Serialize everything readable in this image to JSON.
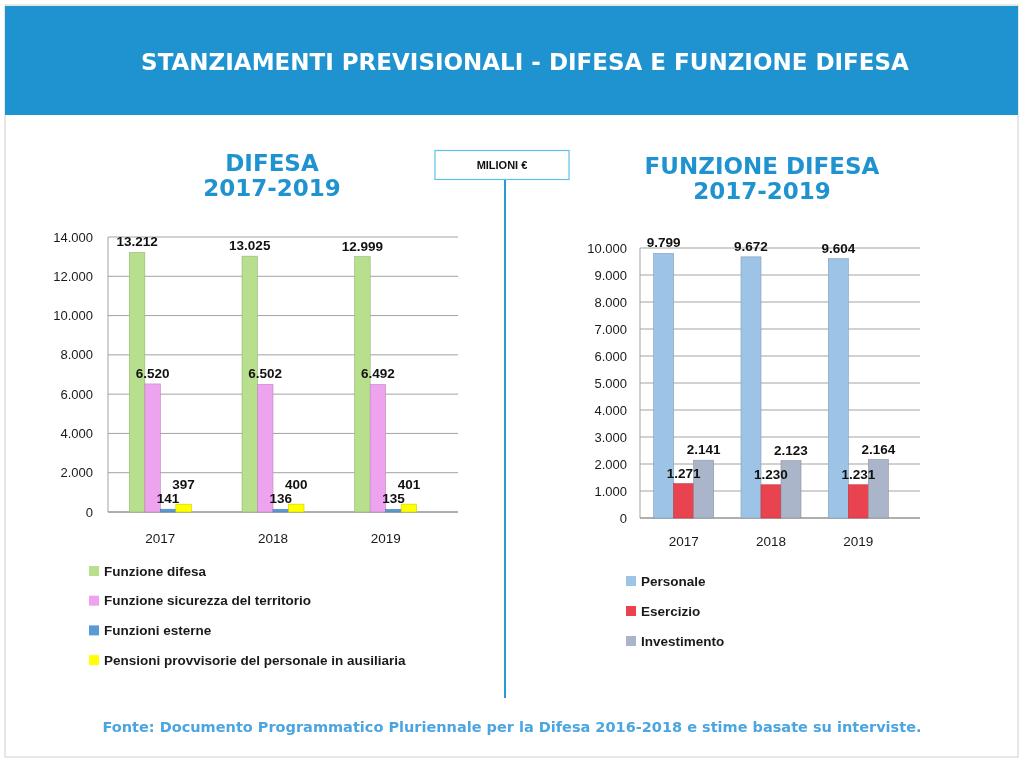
{
  "chart_data": [
    {
      "type": "other",
      "title": "STANZIAMENTI PREVISIONALI - DIFESA E FUNZIONE DIFESA",
      "annotations": [
        "MILIONI €",
        "Fonte: Documento Programmatico Pluriennale per la Difesa 2016-2018 e stime basate su interviste."
      ]
    },
    {
      "type": "bar",
      "title": "DIFESA",
      "subtitle": "2017-2019",
      "categories": [
        "2017",
        "2018",
        "2019"
      ],
      "series": [
        {
          "name": "Funzione difesa",
          "color": "#b7df8e",
          "values": [
            13212,
            13025,
            12999
          ],
          "value_labels": [
            "13.212",
            "13.025",
            "12.999"
          ]
        },
        {
          "name": "Funzione sicurezza del territorio",
          "color": "#eea3ee",
          "values": [
            6520,
            6502,
            6492
          ],
          "value_labels": [
            "6.520",
            "6.502",
            "6.492"
          ]
        },
        {
          "name": "Funzioni esterne",
          "color": "#5b9bd5",
          "values": [
            141,
            136,
            135
          ],
          "value_labels": [
            "141",
            "136",
            "135"
          ]
        },
        {
          "name": "Pensioni provvisorie del personale in ausiliaria",
          "color": "#ffff00",
          "values": [
            397,
            400,
            401
          ],
          "value_labels": [
            "397",
            "400",
            "401"
          ]
        }
      ],
      "ylim": [
        0,
        14000
      ],
      "yticks": [
        0,
        {
          "value": 2000,
          "label": "2.000"
        },
        {
          "value": 4000,
          "label": "4.000"
        },
        {
          "value": 6000,
          "label": "6.000"
        },
        {
          "value": 8000,
          "label": "8.000"
        },
        {
          "value": 10000,
          "label": "10.000"
        },
        {
          "value": 12000,
          "label": "12.000"
        },
        {
          "value": 14000,
          "label": "14.000"
        }
      ],
      "grid": "y",
      "legend": "bottom"
    },
    {
      "type": "bar",
      "title": "FUNZIONE DIFESA",
      "subtitle": "2017-2019",
      "categories": [
        "2017",
        "2018",
        "2019"
      ],
      "series": [
        {
          "name": "Personale",
          "color": "#9dc3e6",
          "values": [
            9799,
            9672,
            9604
          ],
          "value_labels": [
            "9.799",
            "9.672",
            "9.604"
          ]
        },
        {
          "name": "Esercizio",
          "color": "#e8434f",
          "values": [
            1271,
            1230,
            1231
          ],
          "value_labels": [
            "1.271",
            "1.230",
            "1.231"
          ]
        },
        {
          "name": "Investimento",
          "color": "#aab5c9",
          "values": [
            2141,
            2123,
            2164
          ],
          "value_labels": [
            "2.141",
            "2.123",
            "2.164"
          ]
        }
      ],
      "ylim": [
        0,
        10000
      ],
      "yticks": [
        0,
        {
          "value": 1000,
          "label": "1.000"
        },
        {
          "value": 2000,
          "label": "2.000"
        },
        {
          "value": 3000,
          "label": "3.000"
        },
        {
          "value": 4000,
          "label": "4.000"
        },
        {
          "value": 5000,
          "label": "5.000"
        },
        {
          "value": 6000,
          "label": "6.000"
        },
        {
          "value": 7000,
          "label": "7.000"
        },
        {
          "value": 8000,
          "label": "8.000"
        },
        {
          "value": 9000,
          "label": "9.000"
        },
        {
          "value": 10000,
          "label": "10.000"
        }
      ],
      "grid": "y",
      "legend": "bottom"
    }
  ]
}
